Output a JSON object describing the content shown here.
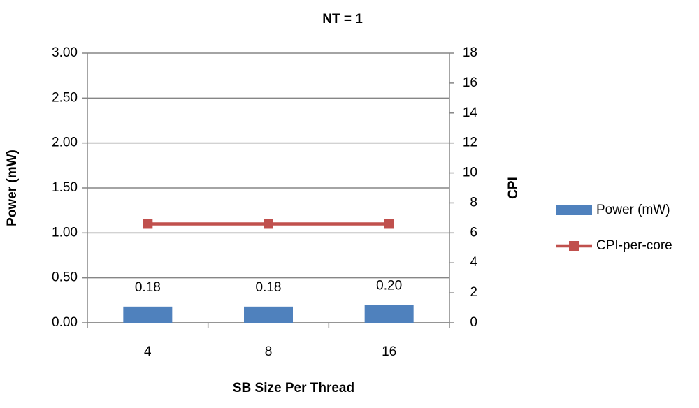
{
  "chart_data": {
    "type": "bar",
    "title": "NT = 1",
    "x_label": "SB Size Per Thread",
    "y_label": "Power (mW)",
    "y2_label": "CPI",
    "categories": [
      "4",
      "8",
      "16"
    ],
    "series": [
      {
        "name": "Power (mW)",
        "type": "bar",
        "color": "#4f81bd",
        "values": [
          0.18,
          0.18,
          0.2
        ],
        "value_labels": [
          "0.18",
          "0.18",
          "0.20"
        ]
      },
      {
        "name": "CPI-per-core",
        "type": "line",
        "axis": "y2",
        "color": "#c0504d",
        "values": [
          6.6,
          6.6,
          6.6
        ]
      }
    ],
    "ylim": [
      0,
      3
    ],
    "yticks": [
      {
        "value": 0,
        "label": "0.00"
      },
      {
        "value": 0.5,
        "label": "0.50"
      },
      {
        "value": 1,
        "label": "1.00"
      },
      {
        "value": 1.5,
        "label": "1.50"
      },
      {
        "value": 2,
        "label": "2.00"
      },
      {
        "value": 2.5,
        "label": "2.50"
      },
      {
        "value": 3,
        "label": "3.00"
      }
    ],
    "y2lim": [
      0,
      18
    ],
    "y2ticks": [
      0,
      2,
      4,
      6,
      8,
      10,
      12,
      14,
      16,
      18
    ],
    "grid": true,
    "legend": "right"
  }
}
